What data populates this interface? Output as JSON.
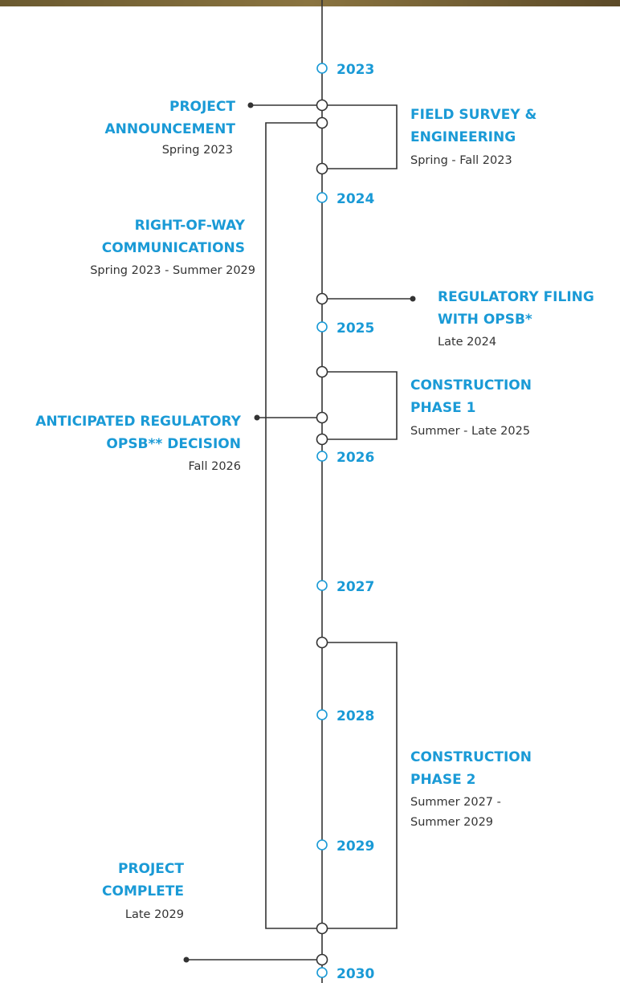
{
  "years": [
    "2023",
    "2024",
    "2025",
    "2026",
    "2027",
    "2028",
    "2029",
    "2030"
  ],
  "events": [
    {
      "title_lines": [
        "PROJECT",
        "ANNOUNCEMENT"
      ],
      "date_lines": [
        "Spring 2023"
      ]
    },
    {
      "title_lines": [
        "FIELD SURVEY &",
        "ENGINEERING"
      ],
      "date_lines": [
        "Spring - Fall 2023"
      ]
    },
    {
      "title_lines": [
        "RIGHT-OF-WAY",
        "COMMUNICATIONS"
      ],
      "date_lines": [
        "Spring 2023 - Summer 2029"
      ]
    },
    {
      "title_lines": [
        "REGULATORY FILING",
        "WITH OPSB*"
      ],
      "date_lines": [
        "Late 2024"
      ]
    },
    {
      "title_lines": [
        "CONSTRUCTION",
        "PHASE 1"
      ],
      "date_lines": [
        "Summer - Late 2025"
      ]
    },
    {
      "title_lines": [
        "ANTICIPATED REGULATORY",
        "OPSB** DECISION"
      ],
      "date_lines": [
        "Fall 2026"
      ]
    },
    {
      "title_lines": [
        "CONSTRUCTION",
        "PHASE 2"
      ],
      "date_lines": [
        "Summer 2027 -",
        "Summer 2029"
      ]
    },
    {
      "title_lines": [
        "PROJECT",
        "COMPLETE"
      ],
      "date_lines": [
        "Late 2029"
      ]
    }
  ]
}
